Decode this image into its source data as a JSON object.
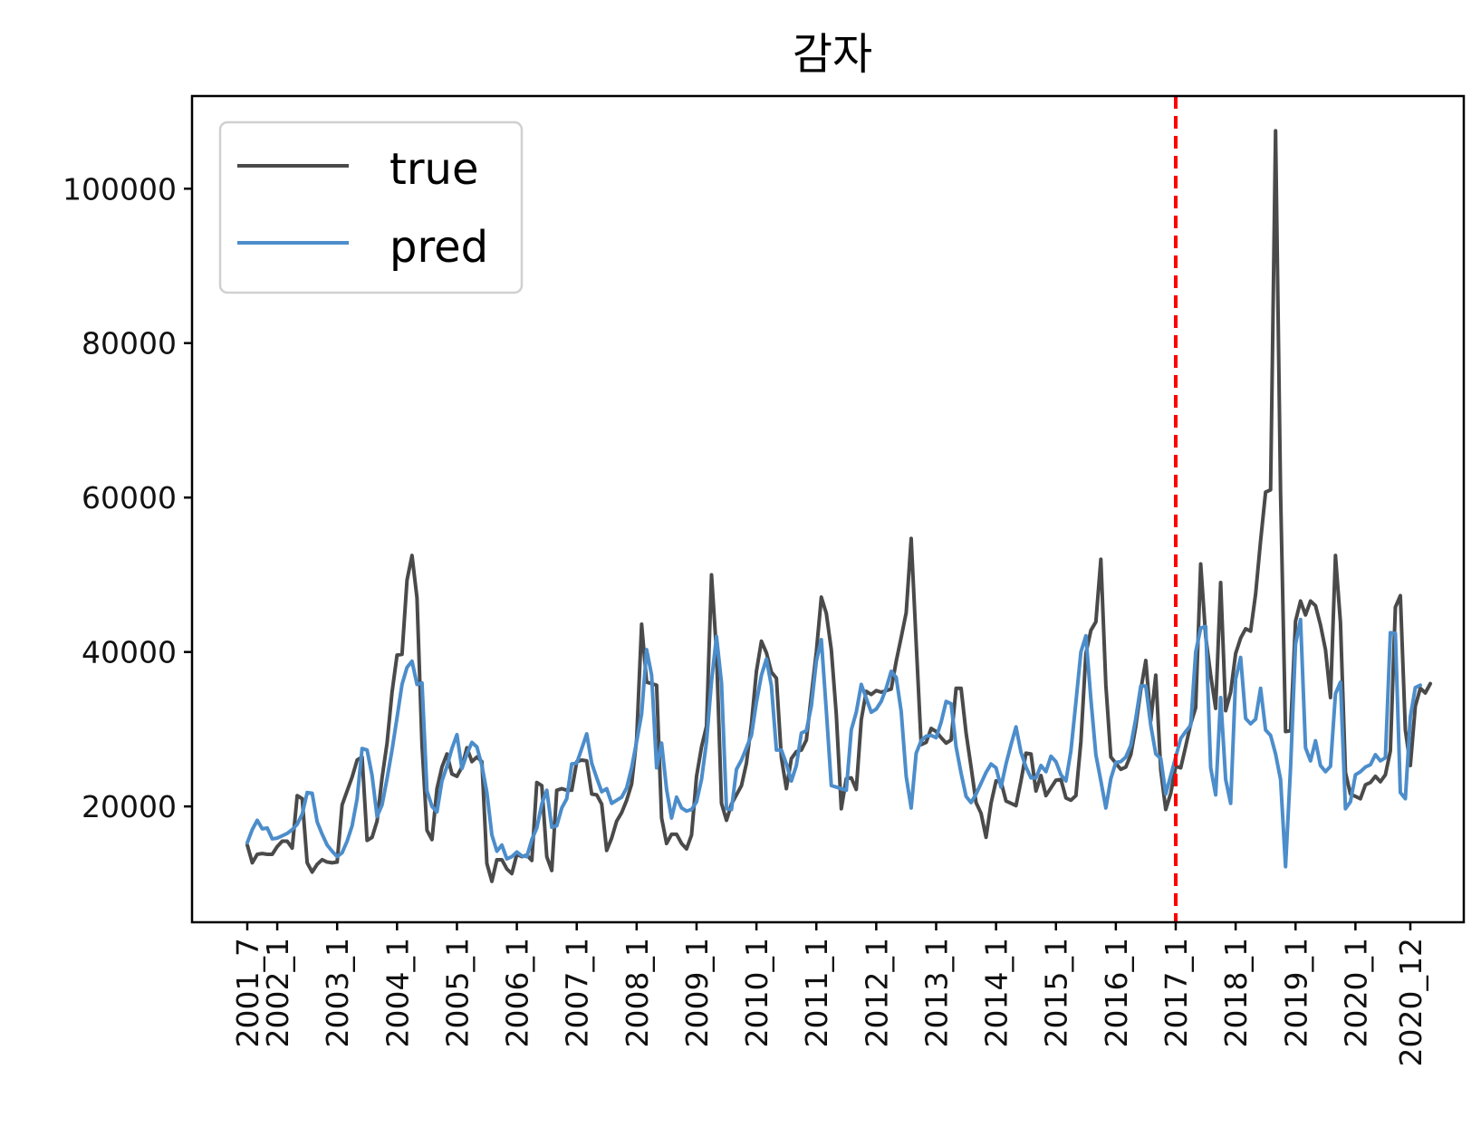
{
  "chart_data": {
    "type": "line",
    "title": "감자",
    "xlabel": "",
    "ylabel": "",
    "ylim": [
      5000,
      112000
    ],
    "yticks": [
      20000,
      40000,
      60000,
      80000,
      100000
    ],
    "ytick_labels": [
      "20000",
      "40000",
      "60000",
      "80000",
      "100000"
    ],
    "x_start": "2001_7",
    "x_end": "2020_12",
    "xtick_labels": [
      "2001_7",
      "2002_1",
      "2003_1",
      "2004_1",
      "2005_1",
      "2006_1",
      "2007_1",
      "2008_1",
      "2009_1",
      "2010_1",
      "2011_1",
      "2012_1",
      "2013_1",
      "2014_1",
      "2015_1",
      "2016_1",
      "2017_1",
      "2018_1",
      "2019_1",
      "2020_1",
      "2020_12"
    ],
    "vline": {
      "x": "2017_1",
      "color": "#ff0000",
      "style": "dashed"
    },
    "legend_position": "upper-left",
    "grid": false,
    "series": [
      {
        "name": "true",
        "color": "#4a4a4a",
        "values": [
          15000,
          12700,
          13800,
          13900,
          13800,
          13800,
          14800,
          15500,
          15500,
          14600,
          21400,
          21000,
          12700,
          11500,
          12500,
          13100,
          12800,
          12700,
          12800,
          20200,
          22000,
          23800,
          26000,
          26400,
          15600,
          16000,
          18100,
          23700,
          28200,
          34800,
          39600,
          39700,
          49300,
          52500,
          47000,
          28000,
          16900,
          15700,
          22300,
          25100,
          26800,
          24200,
          23900,
          25100,
          27600,
          25800,
          26400,
          25800,
          12600,
          10300,
          13100,
          13100,
          11900,
          11300,
          13800,
          13500,
          13700,
          13000,
          23100,
          22700,
          13500,
          11700,
          22100,
          22300,
          22100,
          22100,
          25800,
          26000,
          25900,
          21600,
          21500,
          20300,
          14300,
          15900,
          18100,
          19200,
          20800,
          22900,
          28700,
          43600,
          36100,
          35900,
          35700,
          18500,
          15200,
          16400,
          16400,
          15200,
          14500,
          16300,
          23900,
          27700,
          30400,
          50000,
          40000,
          20400,
          18200,
          20300,
          21500,
          22700,
          25600,
          30700,
          37500,
          41400,
          39900,
          37400,
          36600,
          26300,
          22300,
          26200,
          27100,
          27300,
          28600,
          34400,
          40000,
          47100,
          45000,
          40300,
          31900,
          19700,
          23600,
          23700,
          22200,
          31200,
          34900,
          34500,
          35000,
          34800,
          35000,
          35200,
          38800,
          41900,
          45100,
          54700,
          41200,
          28000,
          28300,
          30100,
          29700,
          28900,
          28200,
          28600,
          35300,
          35300,
          29500,
          25100,
          20500,
          19100,
          16000,
          20400,
          23300,
          23200,
          20700,
          20400,
          20100,
          23300,
          26900,
          26800,
          22000,
          24000,
          21400,
          22400,
          23400,
          23500,
          21100,
          20800,
          21400,
          28400,
          39800,
          42800,
          43900,
          52000,
          35700,
          26400,
          25600,
          24800,
          25100,
          26700,
          30400,
          35100,
          38900,
          31100,
          37000,
          24700,
          19600,
          21700,
          25200,
          25000,
          27800,
          30700,
          32800,
          51400,
          42000,
          37000,
          32700,
          49000,
          32400,
          34800,
          39800,
          41800,
          43000,
          42700,
          47500,
          54400,
          60700,
          61000,
          107500,
          60600,
          29700,
          29800,
          44000,
          46600,
          44800,
          46600,
          46000,
          43500,
          40300,
          34100,
          52500,
          43800,
          24400,
          21600,
          21300,
          21000,
          22800,
          23100,
          23900,
          23200,
          24100,
          27200,
          45800,
          47300,
          29900,
          25300,
          33000,
          35300,
          34700,
          35900
        ]
      },
      {
        "name": "pred",
        "color": "#4c8dcb",
        "values": [
          15300,
          17000,
          18200,
          17100,
          17200,
          15800,
          15900,
          16200,
          16500,
          17000,
          17700,
          19000,
          21800,
          21700,
          18000,
          16400,
          15000,
          14200,
          13500,
          14000,
          15500,
          17500,
          21000,
          27500,
          27300,
          24000,
          18700,
          20200,
          23600,
          27300,
          31500,
          35800,
          38000,
          38800,
          35800,
          36000,
          22000,
          20000,
          19300,
          23300,
          25200,
          27500,
          29300,
          24900,
          26800,
          28300,
          27700,
          25300,
          21800,
          16300,
          14200,
          15000,
          13200,
          13500,
          14100,
          13600,
          13500,
          15700,
          17200,
          20300,
          22100,
          17300,
          17500,
          19800,
          21000,
          25500,
          25600,
          27500,
          29400,
          25600,
          23700,
          21900,
          22300,
          20400,
          20800,
          21200,
          22400,
          25000,
          28400,
          32000,
          40300,
          37000,
          25000,
          28200,
          22200,
          18500,
          21200,
          19800,
          19400,
          19600,
          20600,
          23500,
          28400,
          36200,
          42000,
          36000,
          19700,
          19600,
          24800,
          26000,
          27600,
          29200,
          33500,
          37000,
          39100,
          35600,
          27300,
          27300,
          25500,
          23300,
          25300,
          29500,
          29800,
          33000,
          38800,
          41600,
          32400,
          22700,
          22500,
          22300,
          22100,
          29900,
          32200,
          35800,
          34000,
          32200,
          32600,
          33600,
          35300,
          37500,
          36700,
          32300,
          23900,
          19800,
          26900,
          28500,
          29100,
          29200,
          28900,
          30900,
          33600,
          33300,
          27700,
          24300,
          21300,
          20500,
          21600,
          23000,
          24400,
          25500,
          25000,
          22500,
          25500,
          28000,
          30300,
          27000,
          25100,
          23700,
          23700,
          25300,
          24500,
          26500,
          25800,
          24100,
          23300,
          27200,
          33500,
          40000,
          42100,
          33900,
          26700,
          23300,
          19800,
          23600,
          25700,
          25800,
          26400,
          27900,
          31400,
          35600,
          35600,
          30500,
          26800,
          26200,
          21600,
          24000,
          26400,
          28800,
          29700,
          30500,
          40000,
          43100,
          43300,
          25000,
          21500,
          34100,
          23500,
          20400,
          36500,
          39300,
          31400,
          30700,
          31300,
          35300,
          29900,
          29200,
          26800,
          23500,
          12200,
          25000,
          41000,
          44200,
          27600,
          25900,
          28500,
          25300,
          24500,
          25200,
          34600,
          36100,
          19700,
          20600,
          24100,
          24500,
          25100,
          25400,
          26700,
          25900,
          26300,
          42500,
          42400,
          21800,
          21000,
          31600,
          35400,
          35700
        ]
      }
    ]
  }
}
